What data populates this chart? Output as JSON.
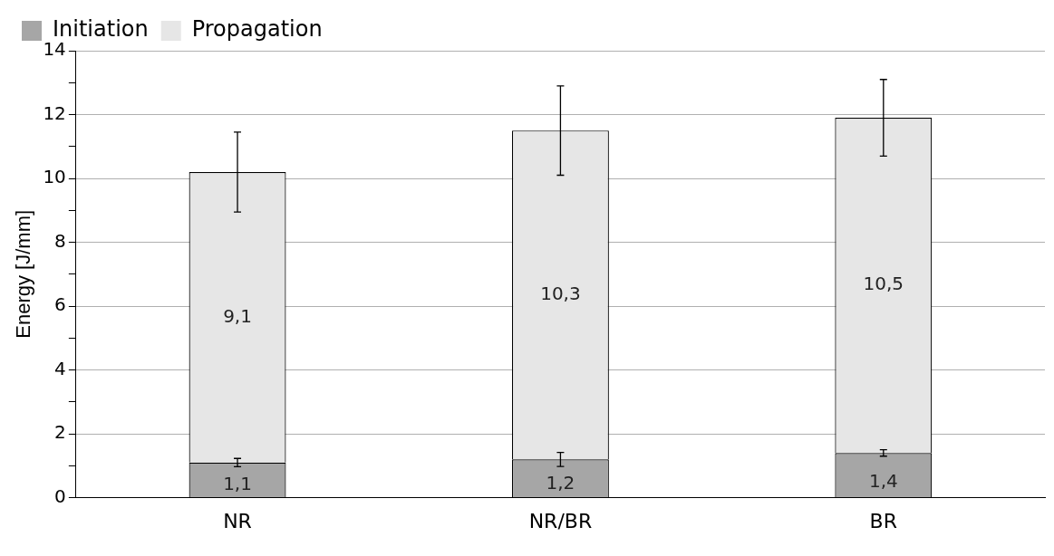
{
  "chart_data": {
    "type": "bar",
    "stacked": true,
    "ylabel": "Energy [J/mm]",
    "categories": [
      "NR",
      "NR/BR",
      "BR"
    ],
    "series": [
      {
        "name": "Initiation",
        "color": "#a6a6a6",
        "values": [
          1.1,
          1.2,
          1.4
        ],
        "errors": [
          0.13,
          0.22,
          0.1
        ],
        "value_labels": [
          "1,1",
          "1,2",
          "1,4"
        ]
      },
      {
        "name": "Propagation",
        "color": "#e6e6e6",
        "values": [
          9.1,
          10.3,
          10.5
        ],
        "errors": [
          1.25,
          1.4,
          1.2
        ],
        "value_labels": [
          "9,1",
          "10,3",
          "10,5"
        ]
      }
    ],
    "ylim": [
      0,
      14
    ],
    "yticks": [
      0,
      {
        "value": 1,
        "label": null
      },
      2,
      {
        "value": 3,
        "label": null
      },
      4,
      {
        "value": 5,
        "label": null
      },
      6,
      {
        "value": 7,
        "label": null
      },
      8,
      {
        "value": 9,
        "label": null
      },
      10,
      {
        "value": 11,
        "label": null
      },
      12,
      {
        "value": 13,
        "label": null
      },
      14
    ],
    "grid": "y",
    "legend": "top left"
  }
}
